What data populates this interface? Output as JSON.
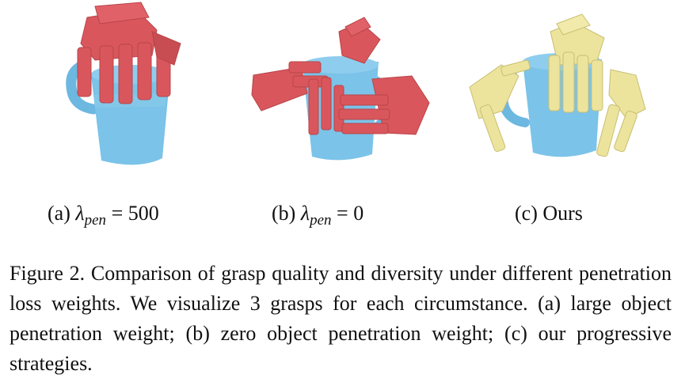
{
  "figure": {
    "panels": [
      {
        "id": "a",
        "label": "(a)",
        "symbol": "λ",
        "subscript": "pen",
        "relation": "=",
        "value": "500",
        "hand_color": "#d9575c",
        "object_color": "#7bc3e8",
        "object": "mug-icon"
      },
      {
        "id": "b",
        "label": "(b)",
        "symbol": "λ",
        "subscript": "pen",
        "relation": "=",
        "value": "0",
        "hand_color": "#d9575c",
        "object_color": "#7bc3e8",
        "object": "mug-icon"
      },
      {
        "id": "c",
        "label": "(c)",
        "text": "Ours",
        "hand_color": "#ece39d",
        "object_color": "#7bc3e8",
        "object": "mug-icon"
      }
    ],
    "caption": "Figure 2.  Comparison of grasp quality and diversity under different penetration loss weights.  We visualize 3 grasps for each circumstance. (a) large object penetration weight; (b) zero object penetration weight; (c) our progressive strategies."
  }
}
